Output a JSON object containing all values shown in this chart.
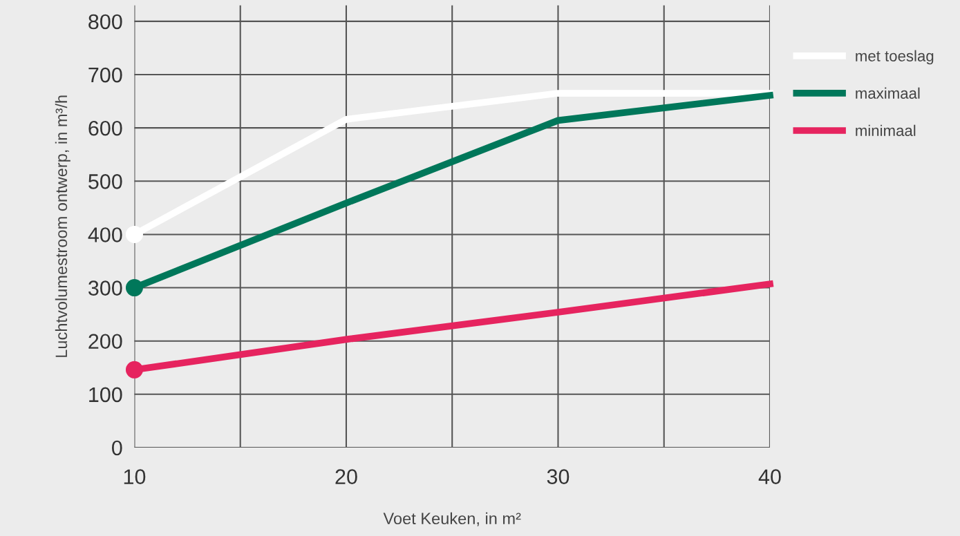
{
  "chart_data": {
    "type": "line",
    "xlabel": "Voet Keuken, in m²",
    "ylabel": "Luchtvolumestroom ontwerp, in m³/h",
    "x": [
      10,
      20,
      30,
      40
    ],
    "series": [
      {
        "name": "met toeslag",
        "color": "#ffffff",
        "values": [
          400,
          616,
          665,
          665
        ]
      },
      {
        "name": "maximaal",
        "color": "#00775a",
        "values": [
          300,
          459,
          614,
          661
        ]
      },
      {
        "name": "minimaal",
        "color": "#e6245f",
        "values": [
          146,
          203,
          254,
          307
        ]
      },
      {
        "type": "scatter",
        "marker": "circle",
        "color": "#ffffff",
        "values": [
          400,
          null,
          null,
          null
        ]
      },
      {
        "type": "scatter",
        "marker": "circle",
        "color": "#00775a",
        "values": [
          300,
          null,
          null,
          null
        ]
      },
      {
        "type": "scatter",
        "marker": "circle",
        "color": "#e6245f",
        "values": [
          146,
          null,
          null,
          null
        ]
      }
    ],
    "xlim": [
      10,
      40
    ],
    "xticks": [
      10,
      {
        "value": 15,
        "label": null
      },
      20,
      {
        "value": 25,
        "label": null
      },
      30,
      {
        "value": 35,
        "label": null
      },
      40
    ],
    "ylim": [
      0,
      830
    ],
    "yticks": [
      0,
      100,
      200,
      300,
      400,
      500,
      600,
      700,
      800
    ],
    "grid": true,
    "legend": "right",
    "marker": "none",
    "line_style": "solid"
  }
}
